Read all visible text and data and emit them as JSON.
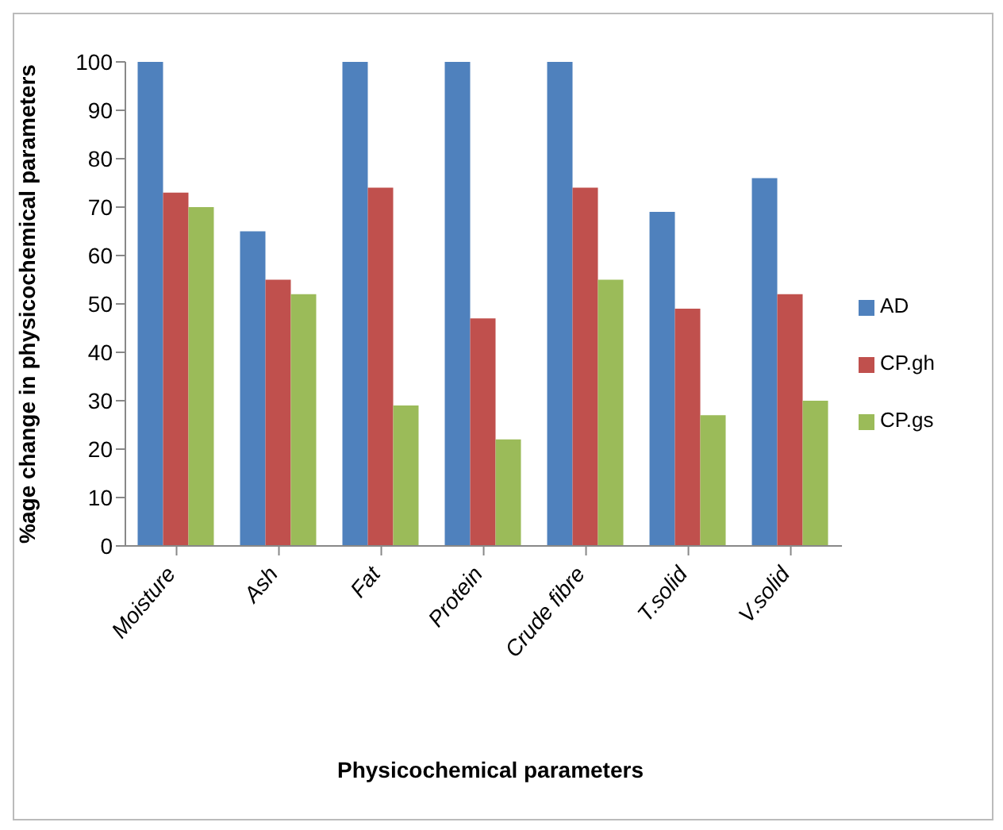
{
  "chart_data": {
    "type": "bar",
    "xlabel": "Physicochemical parameters",
    "ylabel": "%age  change in physicochemical parameters",
    "categories": [
      "Moisture",
      "Ash",
      "Fat",
      "Protein",
      "Crude fibre",
      "T.solid",
      "V.solid"
    ],
    "series": [
      {
        "name": "AD",
        "color": "#4f81bd",
        "values": [
          100,
          65,
          100,
          100,
          100,
          69,
          76
        ]
      },
      {
        "name": "CP.gh",
        "color": "#c0504d",
        "values": [
          73,
          55,
          74,
          47,
          74,
          49,
          52
        ]
      },
      {
        "name": "CP.gs",
        "color": "#9bbb59",
        "values": [
          70,
          52,
          29,
          22,
          55,
          27,
          30
        ]
      }
    ],
    "ylim": [
      0,
      100
    ],
    "yticks": [
      0,
      10,
      20,
      30,
      40,
      50,
      60,
      70,
      80,
      90,
      100
    ],
    "grid": false,
    "legend": "right"
  }
}
